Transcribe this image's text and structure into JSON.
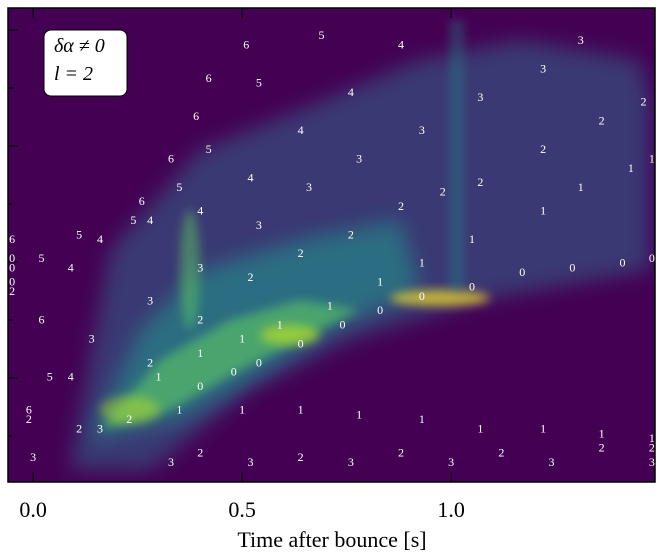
{
  "chart_data": {
    "type": "scatter-labels",
    "xlabel": "Time after bounce [s]",
    "annotations": [
      "δα ≠ 0",
      "l = 2"
    ],
    "xlim": [
      -0.06,
      1.49
    ],
    "ylim": [
      0,
      1
    ],
    "xticks": [
      {
        "value": 0,
        "label": "0.0"
      },
      0.5,
      {
        "value": 1,
        "label": "1.0"
      }
    ],
    "label_color": "#ffffff",
    "background": "#440154",
    "series": [
      {
        "name": "0",
        "x": [
          -0.05,
          -0.05,
          -0.05,
          0.4,
          0.48,
          0.54,
          0.64,
          0.74,
          0.83,
          0.93,
          1.05,
          1.17,
          1.29,
          1.41,
          1.48
        ],
        "values": [
          0.47,
          0.45,
          0.42,
          0.2,
          0.23,
          0.25,
          0.29,
          0.33,
          0.36,
          0.39,
          0.41,
          0.44,
          0.45,
          0.46,
          0.47
        ]
      },
      {
        "name": "1",
        "x": [
          0.3,
          0.4,
          0.5,
          0.59,
          0.71,
          0.83,
          0.93,
          1.05,
          1.22,
          1.31,
          1.43,
          1.48,
          0.35,
          0.5,
          0.64,
          0.78,
          0.93,
          1.07,
          1.22,
          1.36,
          1.48
        ],
        "values": [
          0.22,
          0.27,
          0.3,
          0.33,
          0.37,
          0.42,
          0.46,
          0.51,
          0.57,
          0.62,
          0.66,
          0.68,
          0.15,
          0.15,
          0.15,
          0.14,
          0.13,
          0.11,
          0.11,
          0.1,
          0.09
        ]
      },
      {
        "name": "2",
        "x": [
          0.88,
          0.98,
          1.07,
          1.22,
          1.36,
          1.46,
          0.28,
          0.4,
          0.52,
          0.64,
          0.76,
          0.11,
          0.23,
          0.4,
          0.64,
          0.88,
          1.12,
          1.36,
          1.48,
          -0.05,
          -0.01
        ],
        "values": [
          0.58,
          0.61,
          0.63,
          0.7,
          0.76,
          0.8,
          0.25,
          0.34,
          0.43,
          0.48,
          0.52,
          0.11,
          0.13,
          0.06,
          0.05,
          0.06,
          0.06,
          0.07,
          0.07,
          0.4,
          0.13
        ]
      },
      {
        "name": "3",
        "x": [
          0.0,
          0.33,
          0.52,
          0.76,
          1.0,
          1.24,
          1.48,
          0.28,
          0.4,
          0.54,
          0.66,
          0.78,
          0.93,
          1.07,
          1.22,
          1.31,
          0.16,
          0.14
        ],
        "values": [
          0.05,
          0.04,
          0.04,
          0.04,
          0.04,
          0.04,
          0.04,
          0.38,
          0.45,
          0.54,
          0.62,
          0.68,
          0.74,
          0.81,
          0.87,
          0.93,
          0.11,
          0.3
        ]
      },
      {
        "name": "4",
        "x": [
          0.16,
          0.28,
          0.4,
          0.52,
          0.64,
          0.76,
          0.88,
          0.09,
          0.09
        ],
        "values": [
          0.51,
          0.55,
          0.57,
          0.64,
          0.74,
          0.82,
          0.92,
          0.45,
          0.22
        ]
      },
      {
        "name": "5",
        "x": [
          0.11,
          0.24,
          0.35,
          0.42,
          0.54,
          0.69,
          0.02,
          0.04
        ],
        "values": [
          0.52,
          0.55,
          0.62,
          0.7,
          0.84,
          0.94,
          0.47,
          0.22
        ]
      },
      {
        "name": "6",
        "x": [
          -0.05,
          0.02,
          -0.01,
          0.26,
          0.33,
          0.39,
          0.42,
          0.51
        ],
        "values": [
          0.51,
          0.34,
          0.15,
          0.59,
          0.68,
          0.77,
          0.85,
          0.92
        ]
      }
    ]
  }
}
